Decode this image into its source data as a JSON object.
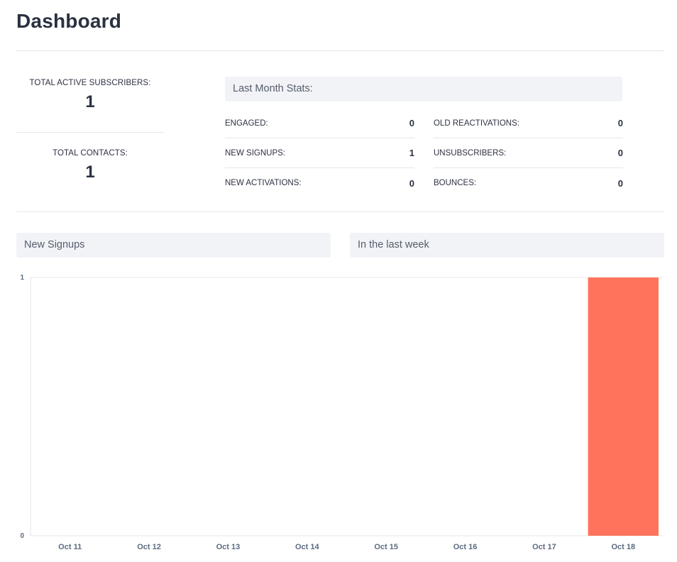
{
  "header": {
    "title": "Dashboard"
  },
  "totals": {
    "active_subscribers_label": "TOTAL ACTIVE SUBSCRIBERS:",
    "active_subscribers_value": "1",
    "contacts_label": "TOTAL CONTACTS:",
    "contacts_value": "1"
  },
  "last_month": {
    "title": "Last Month Stats:",
    "left": [
      {
        "label": "ENGAGED:",
        "value": "0"
      },
      {
        "label": "NEW SIGNUPS:",
        "value": "1"
      },
      {
        "label": "NEW ACTIVATIONS:",
        "value": "0"
      }
    ],
    "right": [
      {
        "label": "OLD REACTIVATIONS:",
        "value": "0"
      },
      {
        "label": "UNSUBSCRIBERS:",
        "value": "0"
      },
      {
        "label": "BOUNCES:",
        "value": "0"
      }
    ]
  },
  "panels": {
    "signups_title": "New Signups",
    "period_title": "In the last week"
  },
  "colors": {
    "bar": "#ff735c",
    "axis": "#e4e6ea",
    "tick_text": "#5c6b80"
  },
  "chart_data": {
    "type": "bar",
    "categories": [
      "Oct 11",
      "Oct 12",
      "Oct 13",
      "Oct 14",
      "Oct 15",
      "Oct 16",
      "Oct 17",
      "Oct 18"
    ],
    "values": [
      0,
      0,
      0,
      0,
      0,
      0,
      0,
      1
    ],
    "ylim": [
      0,
      1
    ],
    "yticks": [
      "0",
      "1"
    ],
    "grid": false,
    "legend": "none"
  }
}
